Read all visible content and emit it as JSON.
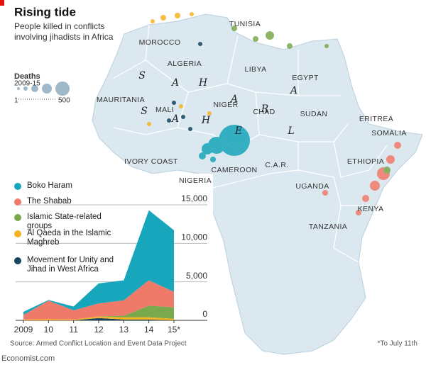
{
  "header": {
    "title": "Rising tide",
    "subtitle": "People killed in conflicts involving jihadists in Africa"
  },
  "size_legend": {
    "title": "Deaths",
    "subtitle": "2009-15",
    "min_label": "1",
    "max_label": "500"
  },
  "map_labels": [
    "MOROCCO",
    "TUNISIA",
    "ALGERIA",
    "LIBYA",
    "EGYPT",
    "MAURITANIA",
    "MALI",
    "NIGER",
    "CHAD",
    "SUDAN",
    "ERITREA",
    "SOMALIA",
    "ETHIOPIA",
    "IVORY COAST",
    "NIGERIA",
    "CAMEROON",
    "C.A.R.",
    "UGANDA",
    "KENYA",
    "TANZANIA"
  ],
  "sahara_letters": [
    "S",
    "A",
    "H",
    "A",
    "R",
    "A"
  ],
  "sahel_letters": [
    "S",
    "A",
    "H",
    "E",
    "L"
  ],
  "chart_data": {
    "type": "stacked-area",
    "categories": [
      "2009",
      "10",
      "11",
      "12",
      "13",
      "14",
      "15*"
    ],
    "series": [
      {
        "name": "Boko Haram",
        "color": "#17a6bb",
        "values": [
          400,
          100,
          500,
          2600,
          2600,
          9100,
          8000
        ]
      },
      {
        "name": "The Shabab",
        "color": "#f07a6a",
        "values": [
          600,
          2400,
          1200,
          1700,
          2000,
          3300,
          2000
        ]
      },
      {
        "name": "Islamic State-related groups",
        "color": "#7aa84d",
        "values": [
          0,
          0,
          0,
          0,
          200,
          1500,
          1500
        ]
      },
      {
        "name": "Al Qaeda in the Islamic Maghreb",
        "color": "#f5b324",
        "values": [
          100,
          150,
          100,
          200,
          300,
          300,
          200
        ]
      },
      {
        "name": "Movement for Unity and Jihad in West Africa",
        "color": "#14445e",
        "values": [
          0,
          0,
          0,
          300,
          100,
          100,
          0
        ]
      }
    ],
    "ylim": [
      0,
      15000
    ],
    "yticks": [
      0,
      {
        "value": 5000,
        "label": "5,000"
      },
      {
        "value": 10000,
        "label": "10,000"
      },
      {
        "value": 15000,
        "label": "15,000"
      }
    ],
    "grid": true
  },
  "footer": {
    "source": "Source: Armed Conflict Location and Event Data Project",
    "note": "*To July 11th",
    "brand": "Economist.com"
  }
}
